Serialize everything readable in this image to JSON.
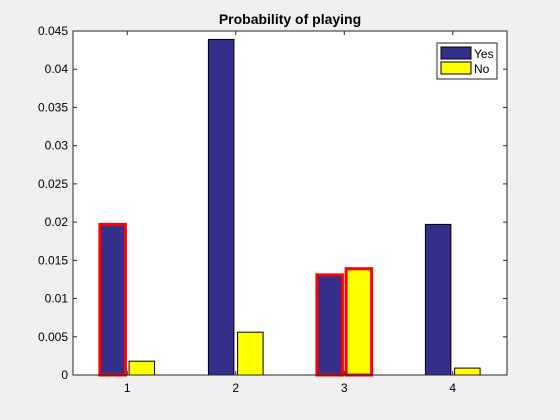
{
  "chart_data": {
    "type": "bar",
    "title": "Probability of playing",
    "xlabel": "",
    "ylabel": "",
    "categories": [
      "1",
      "2",
      "3",
      "4"
    ],
    "ylim": [
      0,
      0.045
    ],
    "yticks": [
      "0",
      "0.005",
      "0.01",
      "0.015",
      "0.02",
      "0.025",
      "0.03",
      "0.035",
      "0.04",
      "0.045"
    ],
    "ytick_values": [
      0,
      0.005,
      0.01,
      0.015,
      0.02,
      0.025,
      0.03,
      0.035,
      0.04,
      0.045
    ],
    "grid": false,
    "legend_position": "top-right",
    "series": [
      {
        "name": "Yes",
        "color": "#342f8a",
        "values": [
          0.0197,
          0.0439,
          0.0131,
          0.0197
        ],
        "highlighted": [
          true,
          false,
          true,
          false
        ]
      },
      {
        "name": "No",
        "color": "#ffff00",
        "values": [
          0.0018,
          0.0056,
          0.0139,
          0.0009
        ],
        "highlighted": [
          false,
          false,
          true,
          false
        ]
      }
    ],
    "highlight_color": "#ff0000"
  }
}
